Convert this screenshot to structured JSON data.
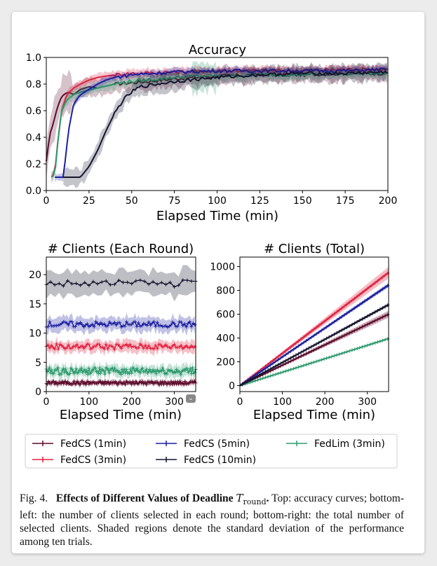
{
  "caption": {
    "prefix": "Fig. 4.",
    "bold": "Effects of Different Values of Deadline",
    "math_main": "T",
    "math_sub": "round",
    "bold_end": ".",
    "text": "Top: accuracy curves; bottom-left: the number of clients selected in each round; bottom-right: the total number of selected clients. Shaded regions denote the standard deviation of the performance among ten trials."
  },
  "legend": {
    "entries": [
      {
        "label": "FedCS (1min)",
        "color": "#5c0a2a"
      },
      {
        "label": "FedCS (5min)",
        "color": "#1b1fa0"
      },
      {
        "label": "FedLim (3min)",
        "color": "#2d9a6e"
      },
      {
        "label": "FedCS (3min)",
        "color": "#e0213e"
      },
      {
        "label": "FedCS (10min)",
        "color": "#14142e"
      }
    ]
  },
  "chart_data": [
    {
      "type": "line",
      "title": "Accuracy",
      "xlabel": "Elapsed Time (min)",
      "ylabel": "",
      "xlim": [
        0,
        200
      ],
      "ylim": [
        0.0,
        1.0
      ],
      "xticks": [
        "0",
        "25",
        "50",
        "75",
        "100",
        "125",
        "150",
        "175",
        "200"
      ],
      "yticks": [
        "0.0",
        "0.2",
        "0.4",
        "0.6",
        "0.8",
        "1.0"
      ],
      "series": [
        {
          "name": "FedCS (1min)",
          "color": "#5c0a2a",
          "band": 0.06,
          "points": [
            [
              0,
              0.22
            ],
            [
              2,
              0.42
            ],
            [
              4,
              0.5
            ],
            [
              6,
              0.6
            ],
            [
              8,
              0.68
            ],
            [
              10,
              0.72
            ],
            [
              13,
              0.74
            ],
            [
              16,
              0.72
            ],
            [
              20,
              0.76
            ],
            [
              25,
              0.78
            ],
            [
              30,
              0.77
            ],
            [
              40,
              0.8
            ],
            [
              50,
              0.81
            ],
            [
              60,
              0.82
            ],
            [
              75,
              0.84
            ],
            [
              100,
              0.86
            ],
            [
              125,
              0.87
            ],
            [
              150,
              0.87
            ],
            [
              175,
              0.88
            ],
            [
              200,
              0.88
            ]
          ]
        },
        {
          "name": "FedCS (3min)",
          "color": "#e0213e",
          "band": 0.03,
          "points": [
            [
              3,
              0.1
            ],
            [
              5,
              0.14
            ],
            [
              7,
              0.4
            ],
            [
              9,
              0.6
            ],
            [
              12,
              0.72
            ],
            [
              16,
              0.77
            ],
            [
              20,
              0.8
            ],
            [
              25,
              0.83
            ],
            [
              30,
              0.85
            ],
            [
              40,
              0.87
            ],
            [
              50,
              0.88
            ],
            [
              75,
              0.89
            ],
            [
              100,
              0.9
            ],
            [
              125,
              0.9
            ],
            [
              150,
              0.9
            ],
            [
              175,
              0.91
            ],
            [
              200,
              0.91
            ]
          ]
        },
        {
          "name": "FedLim (3min)",
          "color": "#2d9a6e",
          "band": 0.035,
          "points": [
            [
              3,
              0.1
            ],
            [
              5,
              0.12
            ],
            [
              7,
              0.4
            ],
            [
              9,
              0.6
            ],
            [
              12,
              0.68
            ],
            [
              16,
              0.72
            ],
            [
              20,
              0.74
            ],
            [
              30,
              0.77
            ],
            [
              40,
              0.8
            ],
            [
              50,
              0.82
            ],
            [
              60,
              0.83
            ],
            [
              75,
              0.85
            ],
            [
              90,
              0.86
            ],
            [
              100,
              0.86
            ],
            [
              125,
              0.87
            ],
            [
              150,
              0.87
            ],
            [
              175,
              0.88
            ],
            [
              200,
              0.88
            ]
          ]
        },
        {
          "name": "FedCS (5min)",
          "color": "#1b1fa0",
          "band": 0.025,
          "points": [
            [
              5,
              0.1
            ],
            [
              8,
              0.1
            ],
            [
              10,
              0.1
            ],
            [
              13,
              0.45
            ],
            [
              16,
              0.65
            ],
            [
              20,
              0.72
            ],
            [
              25,
              0.76
            ],
            [
              30,
              0.8
            ],
            [
              35,
              0.83
            ],
            [
              40,
              0.85
            ],
            [
              50,
              0.87
            ],
            [
              75,
              0.89
            ],
            [
              100,
              0.9
            ],
            [
              125,
              0.9
            ],
            [
              150,
              0.9
            ],
            [
              175,
              0.9
            ],
            [
              200,
              0.91
            ]
          ]
        },
        {
          "name": "FedCS (10min)",
          "color": "#14142e",
          "band": 0.06,
          "points": [
            [
              10,
              0.1
            ],
            [
              20,
              0.1
            ],
            [
              25,
              0.18
            ],
            [
              30,
              0.3
            ],
            [
              35,
              0.45
            ],
            [
              40,
              0.58
            ],
            [
              45,
              0.68
            ],
            [
              50,
              0.74
            ],
            [
              55,
              0.78
            ],
            [
              65,
              0.8
            ],
            [
              75,
              0.82
            ],
            [
              100,
              0.85
            ],
            [
              125,
              0.87
            ],
            [
              150,
              0.88
            ],
            [
              175,
              0.88
            ],
            [
              200,
              0.89
            ]
          ]
        }
      ]
    },
    {
      "type": "line",
      "title": "# Clients (Each Round)",
      "xlabel": "Elapsed Time (min)",
      "ylabel": "",
      "xlim": [
        0,
        350
      ],
      "ylim": [
        0,
        23
      ],
      "xticks": [
        "0",
        "100",
        "200",
        "300"
      ],
      "yticks": [
        "0",
        "5",
        "10",
        "15",
        "20"
      ],
      "series": [
        {
          "name": "FedCS (1min)",
          "color": "#5c0a2a",
          "mean": 1.5,
          "std": 0.5,
          "noise": 0.3
        },
        {
          "name": "FedCS (3min)",
          "color": "#e0213e",
          "mean": 7.7,
          "std": 1.0,
          "noise": 0.5
        },
        {
          "name": "FedLim (3min)",
          "color": "#2d9a6e",
          "mean": 3.5,
          "std": 1.0,
          "noise": 0.6
        },
        {
          "name": "FedCS (5min)",
          "color": "#1b1fa0",
          "mean": 11.5,
          "std": 1.2,
          "noise": 0.5
        },
        {
          "name": "FedCS (10min)",
          "color": "#14142e",
          "mean": 18.5,
          "std": 2.0,
          "noise": 0.6
        }
      ]
    },
    {
      "type": "line",
      "title": "# Clients (Total)",
      "xlabel": "Elapsed Time (min)",
      "ylabel": "",
      "xlim": [
        0,
        350
      ],
      "ylim": [
        -50,
        1080
      ],
      "xticks": [
        "0",
        "100",
        "200",
        "300"
      ],
      "yticks": [
        "0",
        "200",
        "400",
        "600",
        "800",
        "1000"
      ],
      "series": [
        {
          "name": "FedCS (1min)",
          "color": "#5c0a2a",
          "end": 600,
          "band": 0.05
        },
        {
          "name": "FedCS (3min)",
          "color": "#e0213e",
          "end": 950,
          "band": 0.05
        },
        {
          "name": "FedLim (3min)",
          "color": "#2d9a6e",
          "end": 395,
          "band": 0.02
        },
        {
          "name": "FedCS (5min)",
          "color": "#1b1fa0",
          "end": 845,
          "band": 0.02
        },
        {
          "name": "FedCS (10min)",
          "color": "#14142e",
          "end": 680,
          "band": 0.02
        }
      ]
    }
  ]
}
